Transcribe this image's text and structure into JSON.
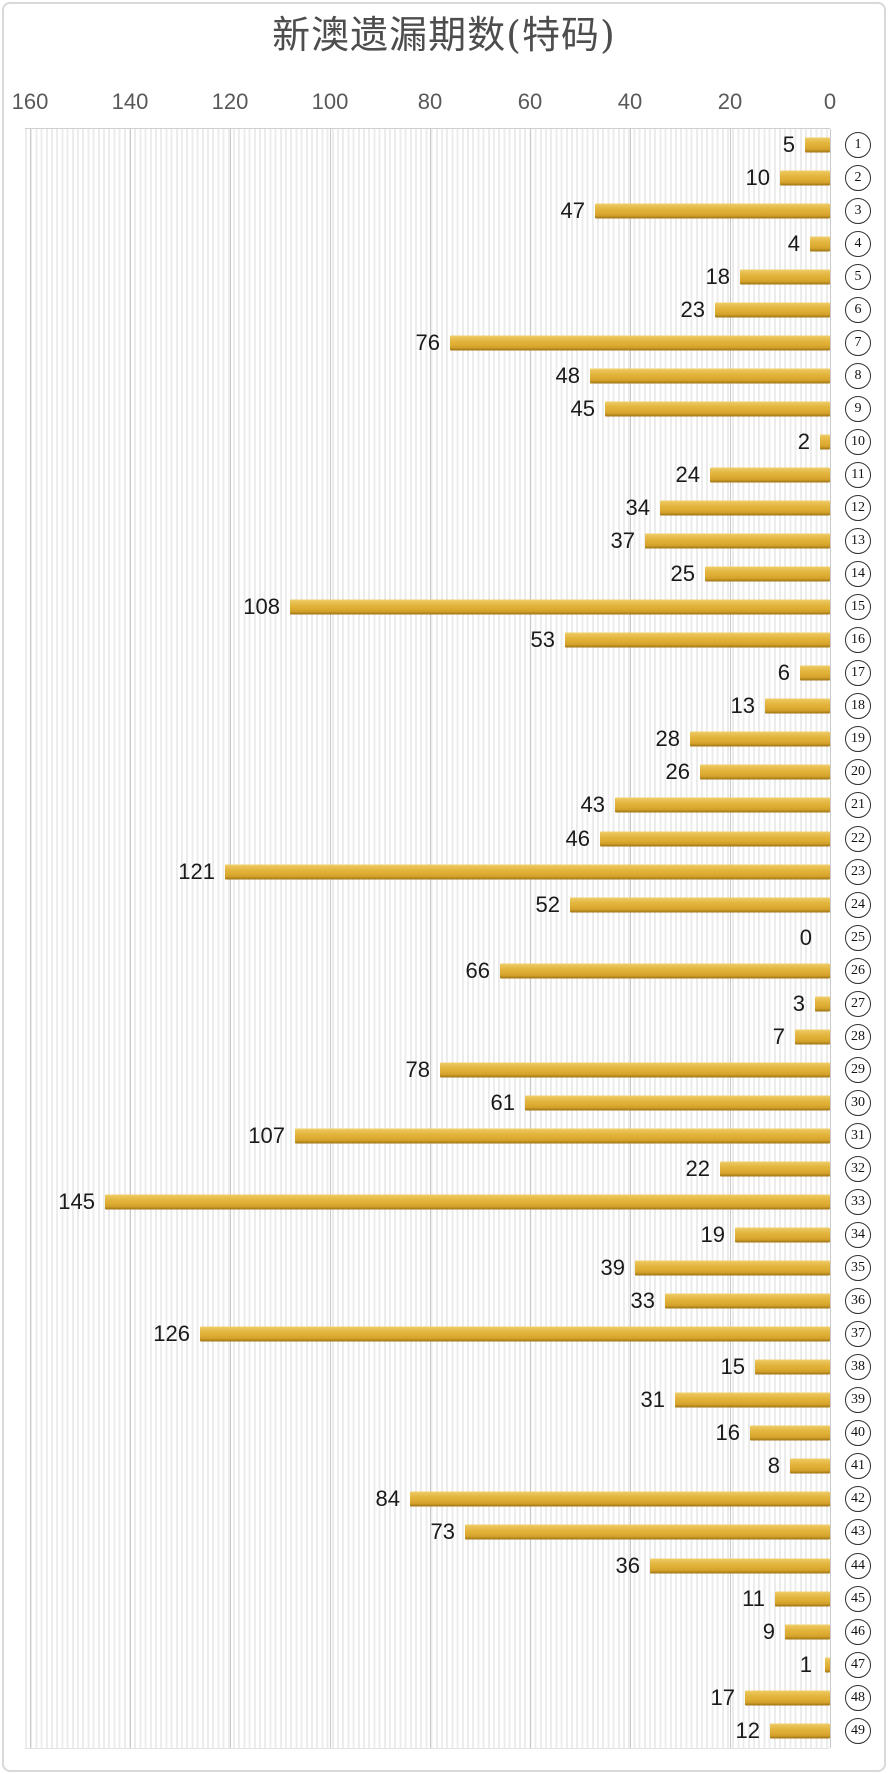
{
  "title": "新澳遗漏期数(特码)",
  "colors": {
    "title_color": "#4d4d4d",
    "tick_color": "#595959",
    "label_color": "#1a1a1a",
    "grid_color": "#c9c9c9",
    "stripe_color": "#ececec",
    "bar_color": "#dfaf35",
    "bar_shadow_color": "#9c7210",
    "card_border_color": "#d9d9d9"
  },
  "chart_data": {
    "type": "bar",
    "orientation": "horizontal",
    "title": "新澳遗漏期数(特码)",
    "value_axis_side": "top",
    "value_axis_direction": "right-to-left-zero-at-right",
    "x_ticks": [
      160,
      140,
      120,
      100,
      80,
      60,
      40,
      20,
      0
    ],
    "xlim": [
      0,
      160
    ],
    "grid": true,
    "category_label_style": "circled-number-right-side",
    "categories": [
      1,
      2,
      3,
      4,
      5,
      6,
      7,
      8,
      9,
      10,
      11,
      12,
      13,
      14,
      15,
      16,
      17,
      18,
      19,
      20,
      21,
      22,
      23,
      24,
      25,
      26,
      27,
      28,
      29,
      30,
      31,
      32,
      33,
      34,
      35,
      36,
      37,
      38,
      39,
      40,
      41,
      42,
      43,
      44,
      45,
      46,
      47,
      48,
      49
    ],
    "values": [
      5,
      10,
      47,
      4,
      18,
      23,
      76,
      48,
      45,
      2,
      24,
      34,
      37,
      25,
      108,
      53,
      6,
      13,
      28,
      26,
      43,
      46,
      121,
      52,
      0,
      66,
      3,
      7,
      78,
      61,
      107,
      22,
      145,
      19,
      39,
      33,
      126,
      15,
      31,
      16,
      8,
      84,
      73,
      36,
      11,
      9,
      1,
      17,
      12
    ]
  }
}
